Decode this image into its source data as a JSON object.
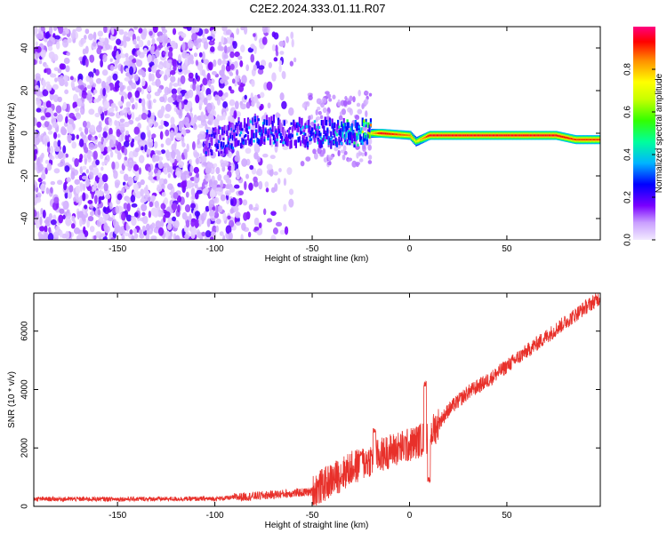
{
  "title": "C2E2.2024.333.01.11.R07",
  "chart_data": [
    {
      "type": "heatmap",
      "xlabel": "Height of straight line (km)",
      "ylabel": "Frequency (Hz)",
      "xlim": [
        -193,
        98
      ],
      "ylim": [
        -50,
        50
      ],
      "xticks": [
        -150,
        -100,
        -50,
        0,
        50
      ],
      "yticks": [
        -40,
        -20,
        0,
        20,
        40
      ],
      "colorbar": {
        "label": "Normalized spectral amplitude",
        "range": [
          0,
          1
        ],
        "ticks": [
          0.0,
          0.2,
          0.4,
          0.6,
          0.8
        ]
      },
      "colormap": [
        "#ffffff",
        "#d7b9ff",
        "#7a00ff",
        "#0000ff",
        "#00b4ff",
        "#00ff7f",
        "#b4ff00",
        "#ffff00",
        "#ff8000",
        "#ff0000",
        "#ff007f"
      ],
      "trace": {
        "description_points": [
          {
            "x": -100,
            "freq": -4,
            "amp": 0.25
          },
          {
            "x": -80,
            "freq": 2,
            "amp": 0.35
          },
          {
            "x": -60,
            "freq": 0,
            "amp": 0.3
          },
          {
            "x": -40,
            "freq": 0,
            "amp": 0.4
          },
          {
            "x": -25,
            "freq": 0,
            "amp": 0.55
          },
          {
            "x": -15,
            "freq": 0,
            "amp": 0.95
          },
          {
            "x": 0,
            "freq": -1,
            "amp": 0.85
          },
          {
            "x": 3,
            "freq": -4,
            "amp": 0.7
          },
          {
            "x": 10,
            "freq": -1,
            "amp": 0.95
          },
          {
            "x": 50,
            "freq": -1,
            "amp": 0.95
          },
          {
            "x": 75,
            "freq": -1,
            "amp": 0.95
          },
          {
            "x": 85,
            "freq": -3,
            "amp": 0.9
          },
          {
            "x": 98,
            "freq": -3,
            "amp": 0.9
          }
        ]
      }
    },
    {
      "type": "line",
      "xlabel": "Height of straight line (km)",
      "ylabel": "SNR (10 * v/v)",
      "xlim": [
        -193,
        98
      ],
      "ylim": [
        0,
        7300
      ],
      "xticks": [
        -150,
        -100,
        -50,
        0,
        50
      ],
      "yticks": [
        0,
        2000,
        4000,
        6000
      ],
      "color": "#e8302a",
      "envelope": [
        {
          "x": -193,
          "y": 250
        },
        {
          "x": -150,
          "y": 250
        },
        {
          "x": -100,
          "y": 260
        },
        {
          "x": -80,
          "y": 350
        },
        {
          "x": -60,
          "y": 450
        },
        {
          "x": -50,
          "y": 500
        },
        {
          "x": -40,
          "y": 900
        },
        {
          "x": -30,
          "y": 1300
        },
        {
          "x": -20,
          "y": 1600
        },
        {
          "x": -10,
          "y": 1900
        },
        {
          "x": 0,
          "y": 2100
        },
        {
          "x": 10,
          "y": 2400
        },
        {
          "x": 20,
          "y": 3300
        },
        {
          "x": 30,
          "y": 3900
        },
        {
          "x": 40,
          "y": 4300
        },
        {
          "x": 50,
          "y": 4800
        },
        {
          "x": 60,
          "y": 5300
        },
        {
          "x": 70,
          "y": 5800
        },
        {
          "x": 80,
          "y": 6300
        },
        {
          "x": 90,
          "y": 6800
        },
        {
          "x": 98,
          "y": 7150
        }
      ],
      "spikes": [
        {
          "x": -25,
          "y": 1800
        },
        {
          "x": -18,
          "y": 2600
        },
        {
          "x": 8,
          "y": 4200
        },
        {
          "x": 10,
          "y": 900
        }
      ]
    }
  ]
}
